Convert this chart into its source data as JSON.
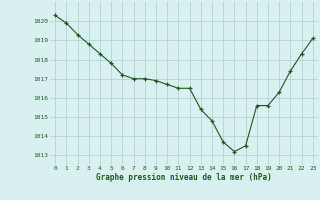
{
  "x": [
    0,
    1,
    2,
    3,
    4,
    5,
    6,
    7,
    8,
    9,
    10,
    11,
    12,
    13,
    14,
    15,
    16,
    17,
    18,
    19,
    20,
    21,
    22,
    23
  ],
  "y": [
    1020.3,
    1019.9,
    1019.3,
    1018.8,
    1018.3,
    1017.8,
    1017.2,
    1017.0,
    1017.0,
    1016.9,
    1016.7,
    1016.5,
    1016.5,
    1015.4,
    1014.8,
    1013.7,
    1013.2,
    1013.5,
    1015.6,
    1015.6,
    1016.3,
    1017.4,
    1018.3,
    1019.1
  ],
  "line_color": "#1a5c1a",
  "marker_color": "#1a5c1a",
  "bg_color": "#d8f0f0",
  "grid_color": "#a8d0c8",
  "xlabel": "Graphe pression niveau de la mer (hPa)",
  "xlabel_color": "#1a5c1a",
  "tick_color": "#1a5c1a",
  "ylim_min": 1012.5,
  "ylim_max": 1021.0,
  "yticks": [
    1013,
    1014,
    1015,
    1016,
    1017,
    1018,
    1019,
    1020
  ],
  "xticks": [
    0,
    1,
    2,
    3,
    4,
    5,
    6,
    7,
    8,
    9,
    10,
    11,
    12,
    13,
    14,
    15,
    16,
    17,
    18,
    19,
    20,
    21,
    22,
    23
  ]
}
